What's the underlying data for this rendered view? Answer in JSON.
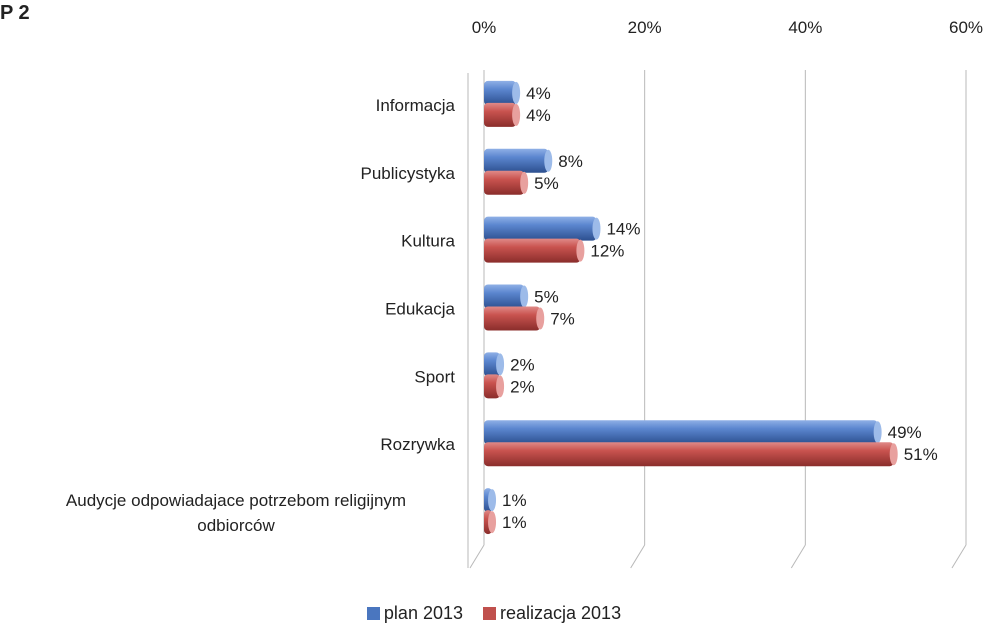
{
  "title": "P 2",
  "chart_data": {
    "type": "bar",
    "orientation": "horizontal",
    "style": "3d-cylinder",
    "categories": [
      "Informacja",
      "Publicystyka",
      "Kultura",
      "Edukacja",
      "Sport",
      "Rozrywka",
      "Audycje odpowiadajace potrzebom religijnym odbiorców"
    ],
    "series": [
      {
        "name": "plan 2013",
        "color": "#4a76bf",
        "values": [
          4,
          8,
          14,
          5,
          2,
          49,
          1
        ],
        "labels": [
          "4%",
          "8%",
          "14%",
          "5%",
          "2%",
          "49%",
          "1%"
        ]
      },
      {
        "name": "realizacja 2013",
        "color": "#c0504d",
        "values": [
          4,
          5,
          12,
          7,
          2,
          51,
          1
        ],
        "labels": [
          "4%",
          "5%",
          "12%",
          "7%",
          "2%",
          "51%",
          "1%"
        ]
      }
    ],
    "x_ticks": [
      "0%",
      "20%",
      "40%",
      "60%"
    ],
    "xlim": [
      0,
      60
    ],
    "grid": true,
    "legend_position": "bottom"
  }
}
